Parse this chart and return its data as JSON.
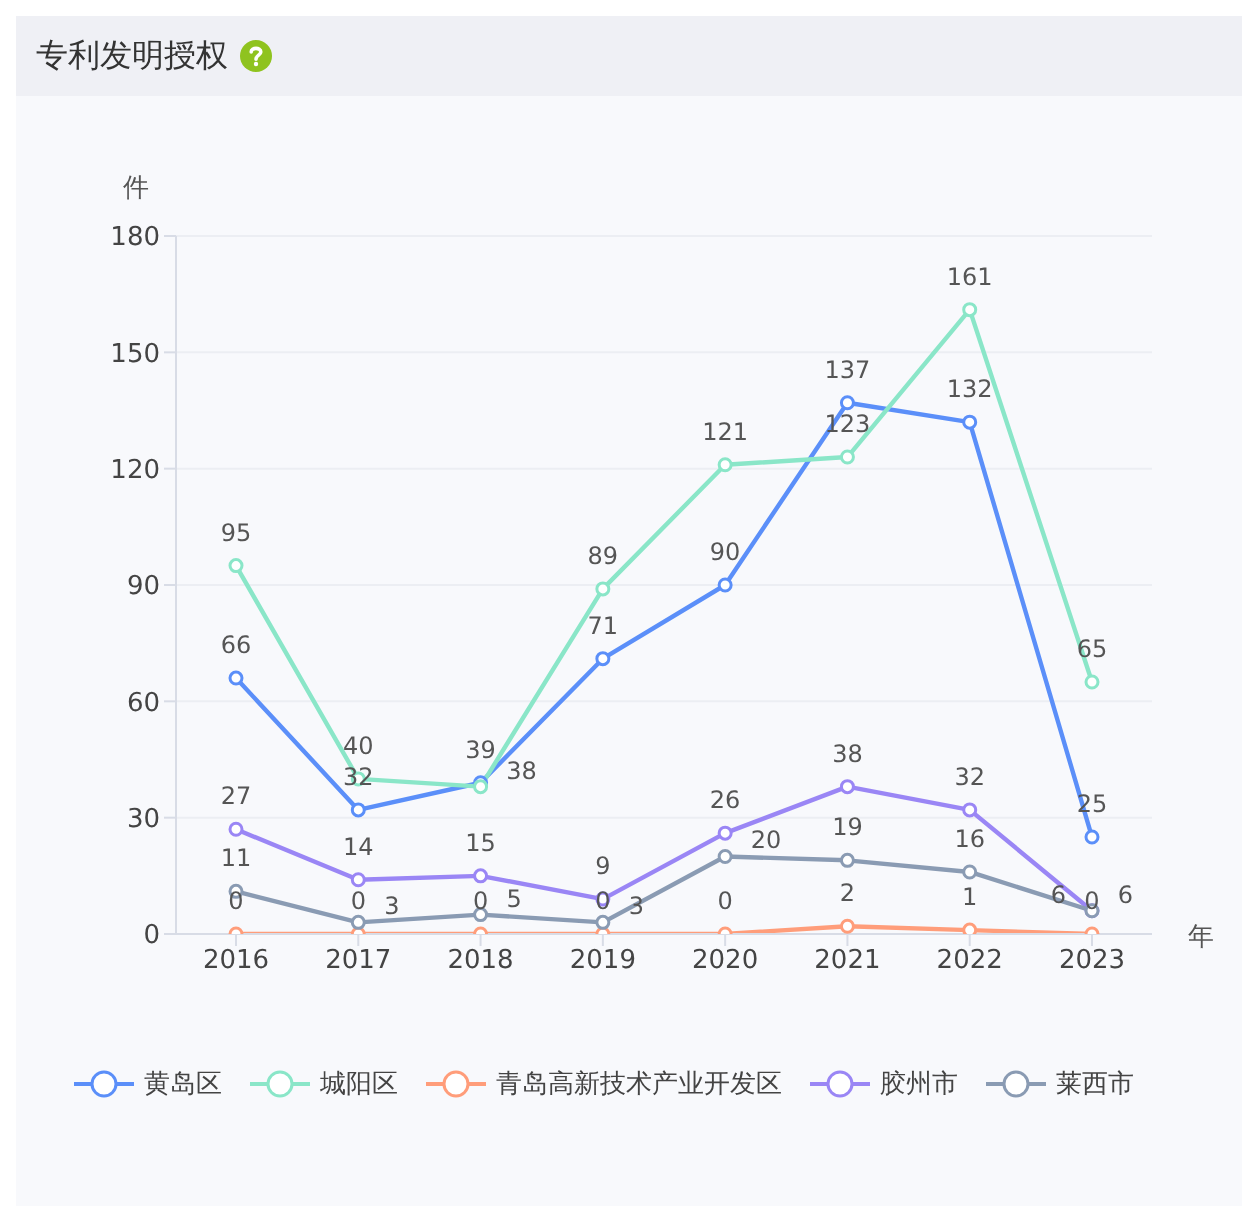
{
  "chart_data": {
    "type": "line",
    "title": "专利发明授权",
    "ylabel": "件",
    "xlabel": "年",
    "categories": [
      "2016",
      "2017",
      "2018",
      "2019",
      "2020",
      "2021",
      "2022",
      "2023"
    ],
    "series": [
      {
        "name": "黄岛区",
        "color": "#5b8ff9",
        "values": [
          66,
          32,
          39,
          71,
          90,
          137,
          132,
          25
        ]
      },
      {
        "name": "城阳区",
        "color": "#8ae6c8",
        "values": [
          95,
          40,
          38,
          89,
          121,
          123,
          161,
          65
        ]
      },
      {
        "name": "青岛高新技术产业开发区",
        "color": "#ff9d7a",
        "values": [
          0,
          0,
          0,
          0,
          0,
          2,
          1,
          0
        ]
      },
      {
        "name": "胶州市",
        "color": "#9a86f5",
        "values": [
          27,
          14,
          15,
          9,
          26,
          38,
          32,
          6
        ]
      },
      {
        "name": "莱西市",
        "color": "#8a9bb3",
        "values": [
          11,
          3,
          5,
          3,
          20,
          19,
          16,
          6
        ]
      }
    ],
    "ylim": [
      0,
      180
    ],
    "yticks": [
      0,
      30,
      60,
      90,
      120,
      150,
      180
    ],
    "grid": "y",
    "legend": "bottom",
    "marker": "circle",
    "line_style": "solid",
    "data_labels": true
  }
}
